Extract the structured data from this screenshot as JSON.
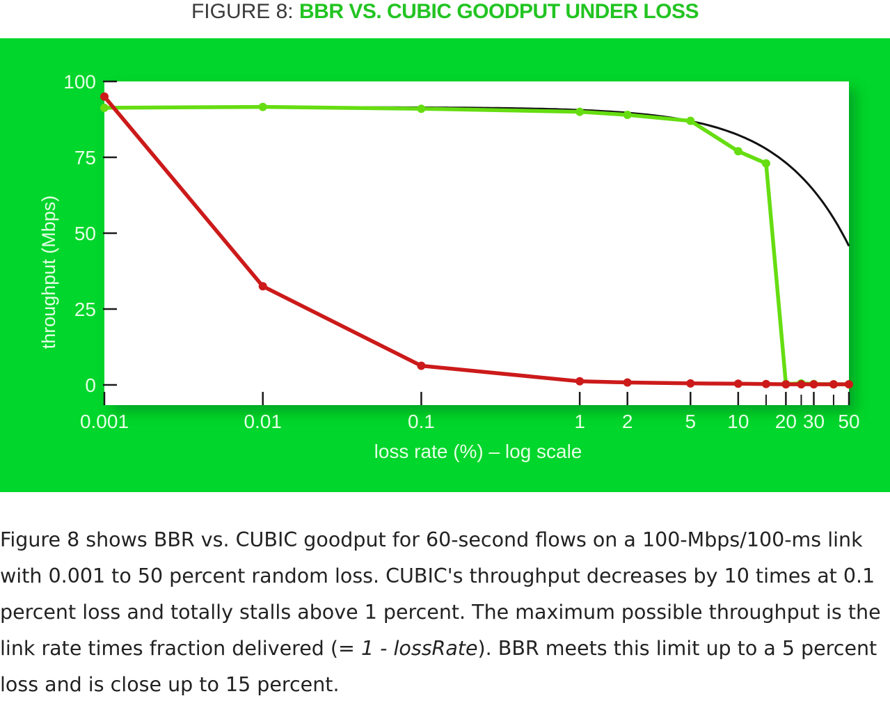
{
  "figure": {
    "prefix": "FIGURE 8:",
    "title": "BBR VS. CUBIC GOODPUT UNDER LOSS"
  },
  "colors": {
    "panel": "#00d62b",
    "plot_bg": "#ffffff",
    "bbr": "#66dd11",
    "cubic": "#cc1a1a",
    "ideal": "#111111",
    "axis_text": "#e6ffe6"
  },
  "chart_data": {
    "type": "line",
    "title": "BBR VS. CUBIC GOODPUT UNDER LOSS",
    "xlabel": "loss rate (%) – log scale",
    "ylabel": "throughput (Mbps)",
    "x_scale": "log",
    "xlim": [
      0.001,
      50
    ],
    "ylim": [
      0,
      100
    ],
    "x_ticks": [
      {
        "value": 0.001,
        "label": "0.001"
      },
      {
        "value": 0.01,
        "label": "0.01"
      },
      {
        "value": 0.1,
        "label": "0.1"
      },
      {
        "value": 1,
        "label": "1"
      },
      {
        "value": 2,
        "label": "2"
      },
      {
        "value": 5,
        "label": "5"
      },
      {
        "value": 10,
        "label": "10"
      },
      {
        "value": 20,
        "label": "20"
      },
      {
        "value": 30,
        "label": "30"
      },
      {
        "value": 50,
        "label": "50"
      }
    ],
    "x_minor_ticks": [
      15,
      25,
      40
    ],
    "y_ticks": [
      {
        "value": 0,
        "label": "0"
      },
      {
        "value": 25,
        "label": "25"
      },
      {
        "value": 50,
        "label": "50"
      },
      {
        "value": 75,
        "label": "75"
      },
      {
        "value": 100,
        "label": "100"
      }
    ],
    "grid": false,
    "legend": "none",
    "series": [
      {
        "key": "bbr",
        "style": "line-markers",
        "points": [
          [
            0.001,
            91.3
          ],
          [
            0.01,
            91.6
          ],
          [
            0.1,
            91.0
          ],
          [
            1,
            90.0
          ],
          [
            2,
            89.0
          ],
          [
            5,
            87.0
          ],
          [
            10,
            77.0
          ],
          [
            15,
            73.0
          ],
          [
            20,
            0.3
          ],
          [
            25,
            0.5
          ],
          [
            30,
            0.3
          ],
          [
            40,
            0.2
          ],
          [
            50,
            0.2
          ]
        ]
      },
      {
        "key": "cubic",
        "style": "line-markers",
        "points": [
          [
            0.001,
            95.0
          ],
          [
            0.01,
            32.5
          ],
          [
            0.1,
            6.3
          ],
          [
            1,
            1.2
          ],
          [
            2,
            0.8
          ],
          [
            5,
            0.5
          ],
          [
            10,
            0.4
          ],
          [
            15,
            0.3
          ],
          [
            20,
            0.2
          ],
          [
            25,
            0.2
          ],
          [
            30,
            0.2
          ],
          [
            40,
            0.2
          ],
          [
            50,
            0.2
          ]
        ]
      },
      {
        "key": "ideal",
        "style": "line",
        "formula": "91.5 * (1 - lossRate)",
        "points": [
          [
            0.001,
            91.5
          ],
          [
            0.01,
            91.5
          ],
          [
            0.1,
            91.4
          ],
          [
            1,
            90.6
          ],
          [
            2,
            89.7
          ],
          [
            5,
            86.9
          ],
          [
            10,
            82.4
          ],
          [
            15,
            77.8
          ],
          [
            20,
            73.2
          ],
          [
            25,
            68.6
          ],
          [
            30,
            64.1
          ],
          [
            40,
            54.9
          ],
          [
            50,
            45.8
          ]
        ]
      }
    ]
  },
  "caption": {
    "before": "Figure 8 shows BBR vs. CUBIC goodput for 60-second flows on a 100-Mbps/100-ms link with 0.001 to 50 percent random loss. CUBIC's throughput decreases by 10 times at 0.1 percent loss and totally stalls above 1 percent. The maximum possible throughput is the link rate times fraction delivered (",
    "formula": "= 1 - lossRate",
    "after": "). BBR meets this limit up to a 5 percent loss and is close up to 15 percent."
  }
}
